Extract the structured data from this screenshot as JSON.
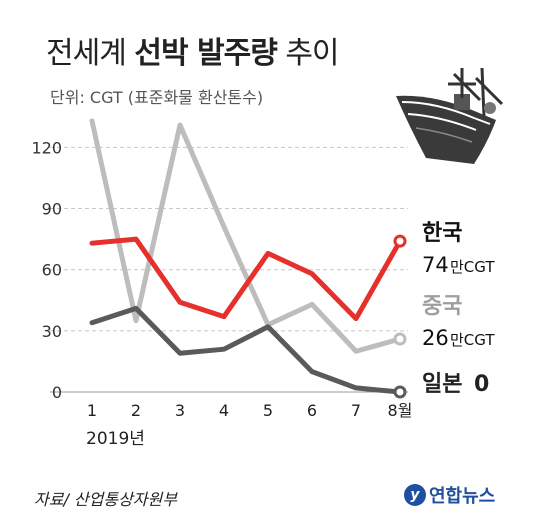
{
  "header": {
    "title_part1": "전세계 ",
    "title_bold": "선박 발주량",
    "title_part2": " 추이",
    "unit": "단위: CGT (표준화물 환산톤수)"
  },
  "footer": {
    "source": "자료/ 산업통상자원부",
    "logo_text": "연합뉴스",
    "logo_mark": "y"
  },
  "chart_data": {
    "type": "line",
    "categories": [
      "1",
      "2",
      "3",
      "4",
      "5",
      "6",
      "7",
      "8월"
    ],
    "x_note": "2019년",
    "ylim": [
      0,
      130
    ],
    "yticks": [
      0,
      30,
      60,
      90,
      120
    ],
    "grid": true,
    "series": [
      {
        "name": "한국",
        "color": "#e5302b",
        "values": [
          73,
          75,
          44,
          37,
          68,
          58,
          36,
          74
        ],
        "end_label_value": "74",
        "end_label_unit": "만CGT"
      },
      {
        "name": "중국",
        "color": "#bdbdbd",
        "values": [
          133,
          35,
          131,
          81,
          33,
          43,
          20,
          26
        ],
        "end_label_value": "26",
        "end_label_unit": "만CGT"
      },
      {
        "name": "일본",
        "color": "#5a5a5a",
        "values": [
          34,
          41,
          19,
          21,
          32,
          10,
          2,
          0
        ],
        "end_label_value": "0",
        "end_label_unit": ""
      }
    ]
  }
}
